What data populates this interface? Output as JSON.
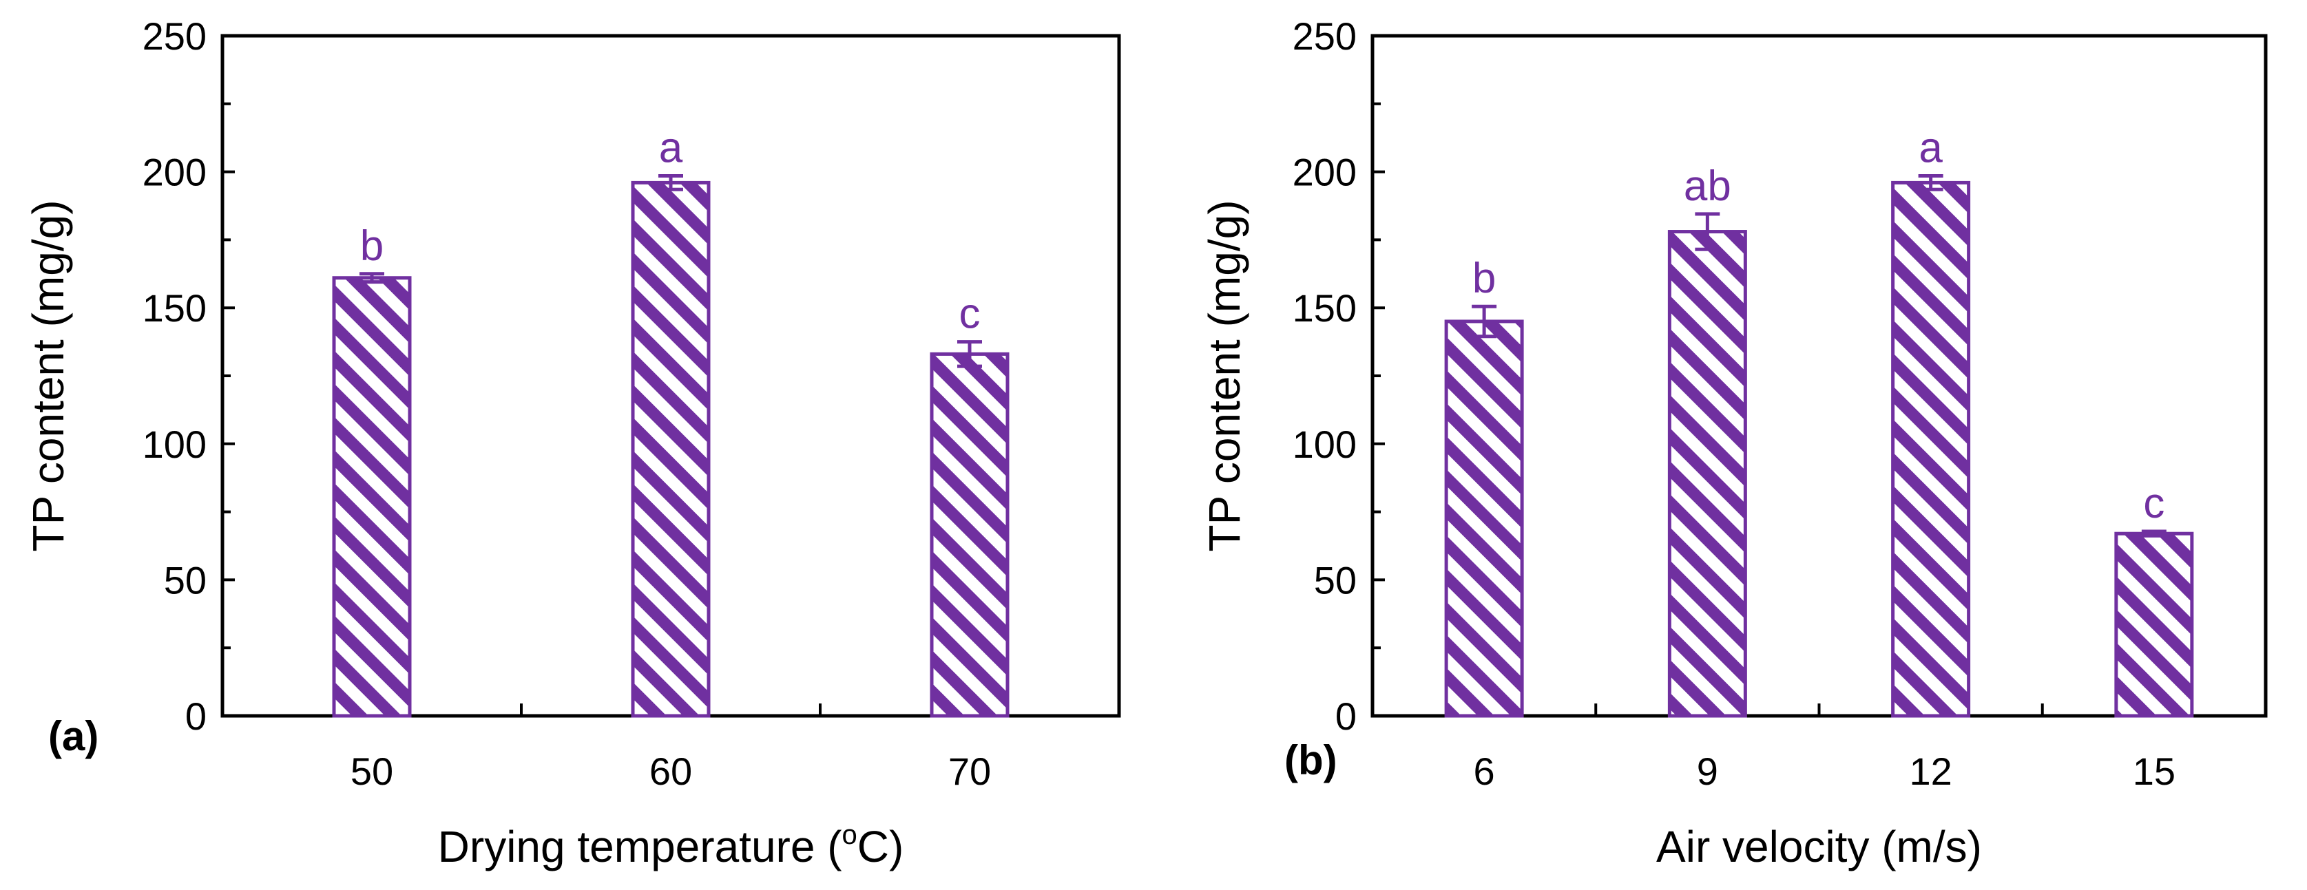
{
  "colors": {
    "bar": "#7030a0",
    "axis": "#000000",
    "background": "#ffffff"
  },
  "chart_data": [
    {
      "type": "bar",
      "panel_label": "(a)",
      "title": "",
      "xlabel_main": "Drying temperature (",
      "xlabel_sup": "o",
      "xlabel_end": "C)",
      "ylabel": "TP content (mg/g)",
      "ylim": [
        0,
        250
      ],
      "y_ticks": [
        "0",
        "50",
        "100",
        "150",
        "200",
        "250"
      ],
      "categories": [
        "50",
        "60",
        "70"
      ],
      "values": [
        161,
        196,
        133
      ],
      "errors": [
        1.5,
        2.5,
        4.5
      ],
      "significance": [
        "b",
        "a",
        "c"
      ],
      "grid": false,
      "pattern": "diagonal-hatch"
    },
    {
      "type": "bar",
      "panel_label": "(b)",
      "title": "",
      "xlabel_main": "Air velocity (m/s)",
      "xlabel_sup": "",
      "xlabel_end": "",
      "ylabel": "TP content (mg/g)",
      "ylim": [
        0,
        250
      ],
      "y_ticks": [
        "0",
        "50",
        "100",
        "150",
        "200",
        "250"
      ],
      "categories": [
        "6",
        "9",
        "12",
        "15"
      ],
      "values": [
        145,
        178,
        196,
        67
      ],
      "errors": [
        5.5,
        6.5,
        2.5,
        0.8
      ],
      "significance": [
        "b",
        "ab",
        "a",
        "c"
      ],
      "grid": false,
      "pattern": "diagonal-hatch"
    }
  ]
}
